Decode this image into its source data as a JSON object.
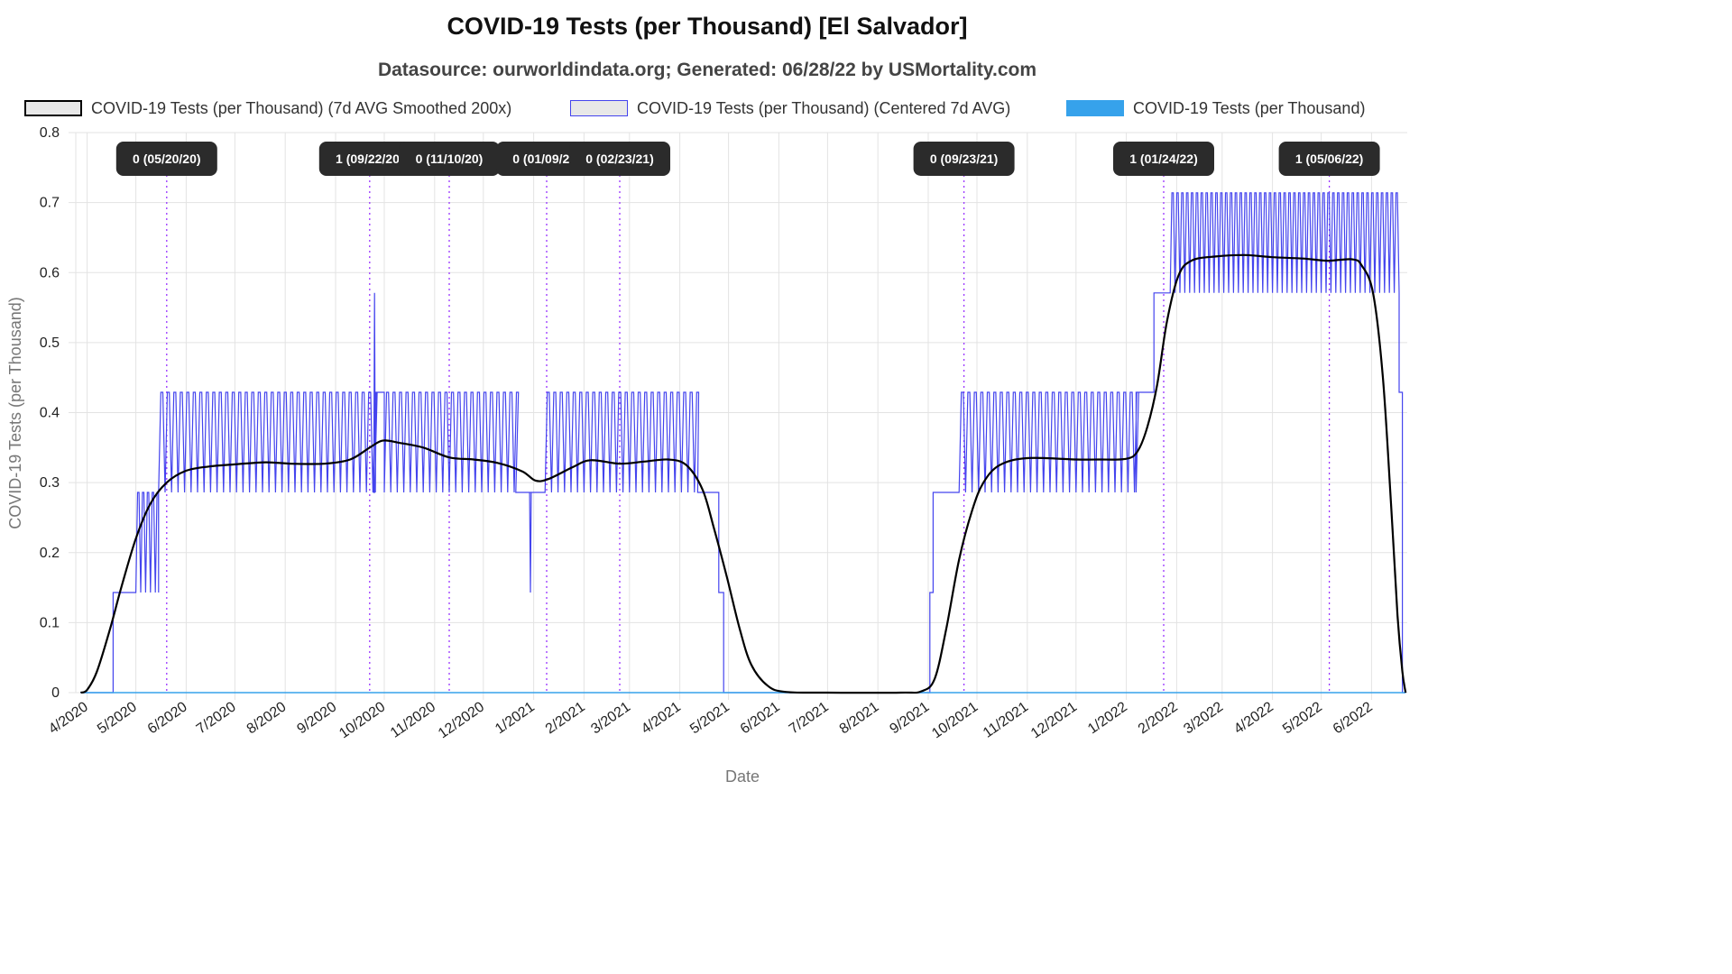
{
  "chart_data": {
    "type": "line",
    "title": "COVID-19 Tests (per Thousand) [El Salvador]",
    "subtitle": "Datasource: ourworldindata.org; Generated: 06/28/22 by USMortality.com",
    "xlabel": "Date",
    "ylabel": "COVID-19 Tests (per Thousand)",
    "ylim": [
      0,
      0.8
    ],
    "y_ticks": [
      "0",
      "0.1",
      "0.2",
      "0.3",
      "0.4",
      "0.5",
      "0.6",
      "0.7",
      "0.8"
    ],
    "x_ticks": [
      "4/2020",
      "5/2020",
      "6/2020",
      "7/2020",
      "8/2020",
      "9/2020",
      "10/2020",
      "11/2020",
      "12/2020",
      "1/2021",
      "2/2021",
      "3/2021",
      "4/2021",
      "5/2021",
      "6/2021",
      "7/2021",
      "8/2021",
      "9/2021",
      "10/2021",
      "11/2021",
      "12/2021",
      "1/2022",
      "2/2022",
      "3/2022",
      "4/2022",
      "5/2022",
      "6/2022"
    ],
    "grid": true,
    "legend_position": "top",
    "colors": {
      "smoothed": "#000000",
      "centered": "#4444ee",
      "raw": "#36a2eb",
      "annotation_line": "#9933ff",
      "annotation_box": "#2b2b2b"
    },
    "series": [
      {
        "name": "COVID-19 Tests (per Thousand) (7d AVG Smoothed 200x)",
        "style": "smoothed",
        "points": [
          [
            "2020-03-28",
            0
          ],
          [
            "2020-04-01",
            0.004
          ],
          [
            "2020-04-07",
            0.03
          ],
          [
            "2020-04-15",
            0.09
          ],
          [
            "2020-04-22",
            0.15
          ],
          [
            "2020-05-01",
            0.22
          ],
          [
            "2020-05-10",
            0.27
          ],
          [
            "2020-05-20",
            0.3
          ],
          [
            "2020-06-01",
            0.317
          ],
          [
            "2020-06-15",
            0.323
          ],
          [
            "2020-07-01",
            0.326
          ],
          [
            "2020-07-20",
            0.329
          ],
          [
            "2020-08-05",
            0.327
          ],
          [
            "2020-08-25",
            0.327
          ],
          [
            "2020-09-10",
            0.333
          ],
          [
            "2020-09-22",
            0.35
          ],
          [
            "2020-09-30",
            0.36
          ],
          [
            "2020-10-10",
            0.357
          ],
          [
            "2020-10-25",
            0.35
          ],
          [
            "2020-11-10",
            0.336
          ],
          [
            "2020-11-25",
            0.333
          ],
          [
            "2020-12-10",
            0.328
          ],
          [
            "2020-12-25",
            0.316
          ],
          [
            "2021-01-02",
            0.303
          ],
          [
            "2021-01-10",
            0.305
          ],
          [
            "2021-01-25",
            0.322
          ],
          [
            "2021-02-05",
            0.332
          ],
          [
            "2021-02-23",
            0.327
          ],
          [
            "2021-03-10",
            0.33
          ],
          [
            "2021-03-25",
            0.333
          ],
          [
            "2021-04-05",
            0.325
          ],
          [
            "2021-04-15",
            0.29
          ],
          [
            "2021-04-22",
            0.235
          ],
          [
            "2021-04-30",
            0.165
          ],
          [
            "2021-05-08",
            0.09
          ],
          [
            "2021-05-15",
            0.04
          ],
          [
            "2021-05-25",
            0.01
          ],
          [
            "2021-06-05",
            0.001
          ],
          [
            "2021-07-01",
            0
          ],
          [
            "2021-08-15",
            0
          ],
          [
            "2021-08-28",
            0.002
          ],
          [
            "2021-09-05",
            0.02
          ],
          [
            "2021-09-12",
            0.09
          ],
          [
            "2021-09-20",
            0.19
          ],
          [
            "2021-09-28",
            0.26
          ],
          [
            "2021-10-05",
            0.3
          ],
          [
            "2021-10-15",
            0.325
          ],
          [
            "2021-11-01",
            0.335
          ],
          [
            "2021-12-01",
            0.333
          ],
          [
            "2021-12-15",
            0.333
          ],
          [
            "2022-01-01",
            0.334
          ],
          [
            "2022-01-08",
            0.345
          ],
          [
            "2022-01-14",
            0.38
          ],
          [
            "2022-01-20",
            0.44
          ],
          [
            "2022-01-26",
            0.53
          ],
          [
            "2022-02-02",
            0.595
          ],
          [
            "2022-02-10",
            0.617
          ],
          [
            "2022-02-25",
            0.623
          ],
          [
            "2022-03-15",
            0.625
          ],
          [
            "2022-04-01",
            0.622
          ],
          [
            "2022-04-20",
            0.62
          ],
          [
            "2022-05-05",
            0.617
          ],
          [
            "2022-05-20",
            0.619
          ],
          [
            "2022-05-26",
            0.61
          ],
          [
            "2022-06-02",
            0.57
          ],
          [
            "2022-06-08",
            0.45
          ],
          [
            "2022-06-13",
            0.27
          ],
          [
            "2022-06-17",
            0.11
          ],
          [
            "2022-06-20",
            0.03
          ],
          [
            "2022-06-22",
            0
          ]
        ]
      },
      {
        "name": "COVID-19 Tests (per Thousand) (Centered 7d AVG)",
        "style": "centered",
        "segments": [
          {
            "type": "flat",
            "start": "2020-03-28",
            "end": "2020-04-17",
            "value": 0
          },
          {
            "type": "flat",
            "start": "2020-04-17",
            "end": "2020-05-01",
            "value": 0.143
          },
          {
            "type": "osc",
            "start": "2020-05-01",
            "end": "2020-05-15",
            "low": 0.143,
            "high": 0.286,
            "period": 3
          },
          {
            "type": "osc",
            "start": "2020-05-15",
            "end": "2020-09-25",
            "low": 0.286,
            "high": 0.429,
            "period": 4
          },
          {
            "type": "spike",
            "date": "2020-09-25",
            "base": 0.286,
            "peak": 0.571
          },
          {
            "type": "flat",
            "start": "2020-09-26",
            "end": "2020-10-01",
            "value": 0.429
          },
          {
            "type": "osc",
            "start": "2020-10-01",
            "end": "2020-12-21",
            "low": 0.286,
            "high": 0.429,
            "period": 4
          },
          {
            "type": "flat",
            "start": "2020-12-21",
            "end": "2020-12-31",
            "value": 0.286
          },
          {
            "type": "spike",
            "date": "2020-12-30",
            "base": 0.286,
            "peak": 0.143
          },
          {
            "type": "flat",
            "start": "2020-12-31",
            "end": "2021-01-08",
            "value": 0.286
          },
          {
            "type": "osc",
            "start": "2021-01-08",
            "end": "2021-04-12",
            "low": 0.286,
            "high": 0.429,
            "period": 4
          },
          {
            "type": "flat",
            "start": "2021-04-12",
            "end": "2021-04-25",
            "value": 0.286
          },
          {
            "type": "flat",
            "start": "2021-04-25",
            "end": "2021-04-28",
            "value": 0.143
          },
          {
            "type": "flat",
            "start": "2021-04-28",
            "end": "2021-09-02",
            "value": 0
          },
          {
            "type": "flat",
            "start": "2021-09-02",
            "end": "2021-09-04",
            "value": 0.143
          },
          {
            "type": "flat",
            "start": "2021-09-04",
            "end": "2021-09-20",
            "value": 0.286
          },
          {
            "type": "osc",
            "start": "2021-09-20",
            "end": "2022-01-07",
            "low": 0.286,
            "high": 0.429,
            "period": 4
          },
          {
            "type": "flat",
            "start": "2022-01-07",
            "end": "2022-01-18",
            "value": 0.429
          },
          {
            "type": "flat",
            "start": "2022-01-18",
            "end": "2022-01-28",
            "value": 0.571
          },
          {
            "type": "osc",
            "start": "2022-01-28",
            "end": "2022-06-18",
            "low": 0.571,
            "high": 0.714,
            "period": 3
          },
          {
            "type": "flat",
            "start": "2022-06-18",
            "end": "2022-06-20",
            "value": 0.429
          },
          {
            "type": "flat",
            "start": "2022-06-20",
            "end": "2022-06-22",
            "value": 0
          }
        ]
      },
      {
        "name": "COVID-19 Tests (per Thousand)",
        "style": "raw",
        "points": [
          [
            "2020-03-28",
            0
          ],
          [
            "2022-06-22",
            0
          ]
        ]
      }
    ],
    "annotations": [
      {
        "date": "2020-05-20",
        "label": "0 (05/20/20)"
      },
      {
        "date": "2020-09-22",
        "label": "1 (09/22/20)"
      },
      {
        "date": "2020-11-10",
        "label": "0 (11/10/20)"
      },
      {
        "date": "2021-01-09",
        "label": "0 (01/09/21)"
      },
      {
        "date": "2021-02-23",
        "label": "0 (02/23/21)"
      },
      {
        "date": "2021-09-23",
        "label": "0 (09/23/21)"
      },
      {
        "date": "2022-01-24",
        "label": "1 (01/24/22)"
      },
      {
        "date": "2022-05-06",
        "label": "1 (05/06/22)"
      }
    ]
  }
}
